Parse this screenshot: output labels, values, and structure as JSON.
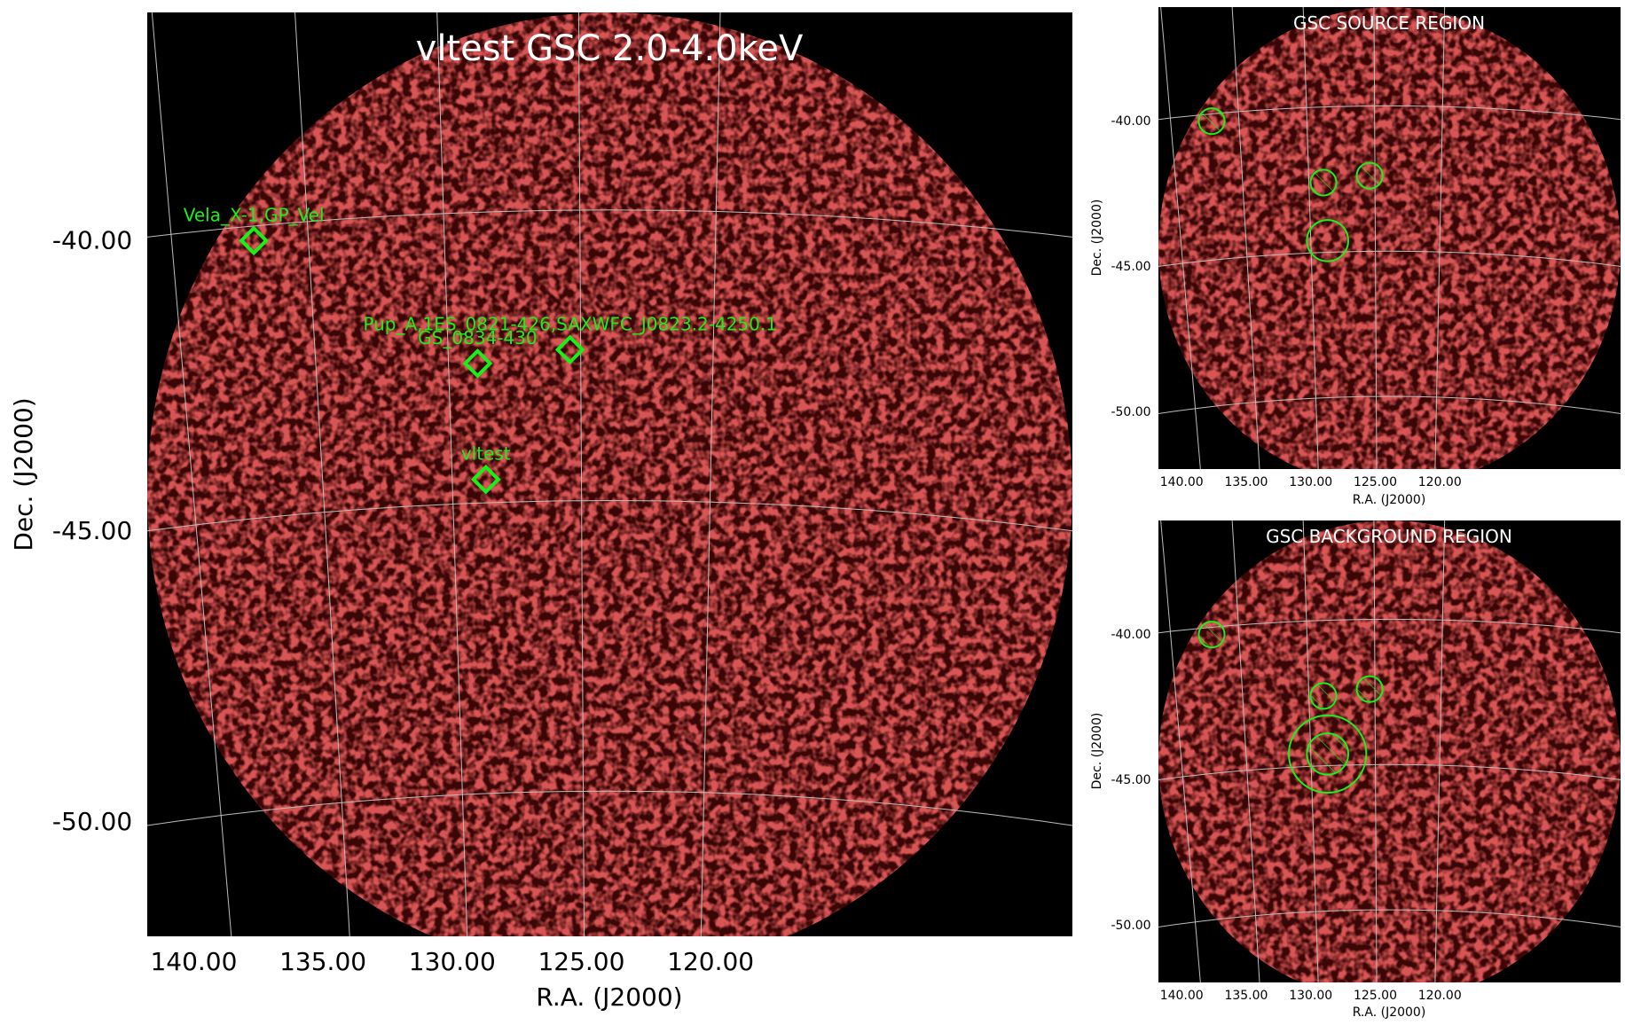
{
  "figure": {
    "background": "#ffffff",
    "plot_background": "#000000",
    "emission_color": "#b01818",
    "grid_color": "#bdbdbd",
    "marker_color": "#19f019"
  },
  "chart_data": [
    {
      "id": "main",
      "type": "heatmap",
      "title": "vltest GSC 2.0-4.0keV",
      "xlabel": "R.A. (J2000)",
      "ylabel": "Dec. (J2000)",
      "xlim": [
        141.8,
        106.0
      ],
      "ylim": [
        -52.5,
        -36.6
      ],
      "x_ticks": [
        140,
        135,
        130,
        125,
        120
      ],
      "x_tick_labels": [
        "140.00",
        "135.00",
        "130.00",
        "125.00",
        "120.00"
      ],
      "y_ticks": [
        -40,
        -45,
        -50
      ],
      "y_tick_labels": [
        "-40.00",
        "-45.00",
        "-50.00"
      ],
      "grid": true,
      "legend": "none",
      "sources": [
        {
          "label": "Vela_X-1,GP_Vel",
          "ra": 137.0,
          "dec": -40.25,
          "marker": "diamond"
        },
        {
          "label": "GS_0834-430",
          "ra": 128.9,
          "dec": -42.6,
          "marker": "diamond"
        },
        {
          "label": "Pup_A,1ES_0821-426,SAXWFC_J0823.2-4250.1",
          "ra": 125.4,
          "dec": -42.4,
          "marker": "diamond"
        },
        {
          "label": "vltest",
          "ra": 128.7,
          "dec": -44.6,
          "marker": "diamond"
        }
      ]
    },
    {
      "id": "source",
      "type": "heatmap",
      "title": "GSC SOURCE REGION",
      "xlabel": "R.A. (J2000)",
      "ylabel": "Dec. (J2000)",
      "xlim": [
        141.8,
        106.0
      ],
      "ylim": [
        -52.5,
        -36.6
      ],
      "x_ticks": [
        140,
        135,
        130,
        125,
        120
      ],
      "x_tick_labels": [
        "140.00",
        "135.00",
        "130.00",
        "125.00",
        "120.00"
      ],
      "y_ticks": [
        -40,
        -45,
        -50
      ],
      "y_tick_labels": [
        "-40.00",
        "-45.00",
        "-50.00"
      ],
      "grid": true,
      "legend": "none",
      "regions": [
        {
          "kind": "exclude",
          "ra": 137.0,
          "dec": -40.25,
          "radius_deg": 1.0
        },
        {
          "kind": "exclude",
          "ra": 128.9,
          "dec": -42.6,
          "radius_deg": 1.0
        },
        {
          "kind": "exclude",
          "ra": 125.4,
          "dec": -42.4,
          "radius_deg": 1.0
        },
        {
          "kind": "include",
          "ra": 128.7,
          "dec": -44.6,
          "radius_deg": 1.6
        }
      ]
    },
    {
      "id": "background",
      "type": "heatmap",
      "title": "GSC BACKGROUND REGION",
      "xlabel": "R.A. (J2000)",
      "ylabel": "Dec. (J2000)",
      "xlim": [
        141.8,
        106.0
      ],
      "ylim": [
        -52.5,
        -36.6
      ],
      "x_ticks": [
        140,
        135,
        130,
        125,
        120
      ],
      "x_tick_labels": [
        "140.00",
        "135.00",
        "130.00",
        "125.00",
        "120.00"
      ],
      "y_ticks": [
        -40,
        -45,
        -50
      ],
      "y_tick_labels": [
        "-40.00",
        "-45.00",
        "-50.00"
      ],
      "grid": true,
      "legend": "none",
      "regions": [
        {
          "kind": "exclude",
          "ra": 137.0,
          "dec": -40.25,
          "radius_deg": 1.0
        },
        {
          "kind": "exclude",
          "ra": 128.9,
          "dec": -42.6,
          "radius_deg": 1.0
        },
        {
          "kind": "exclude",
          "ra": 125.4,
          "dec": -42.4,
          "radius_deg": 1.0
        },
        {
          "kind": "exclude",
          "ra": 128.7,
          "dec": -44.6,
          "radius_deg": 1.6
        },
        {
          "kind": "include",
          "ra": 128.7,
          "dec": -44.6,
          "radius_deg": 3.0
        }
      ]
    }
  ]
}
